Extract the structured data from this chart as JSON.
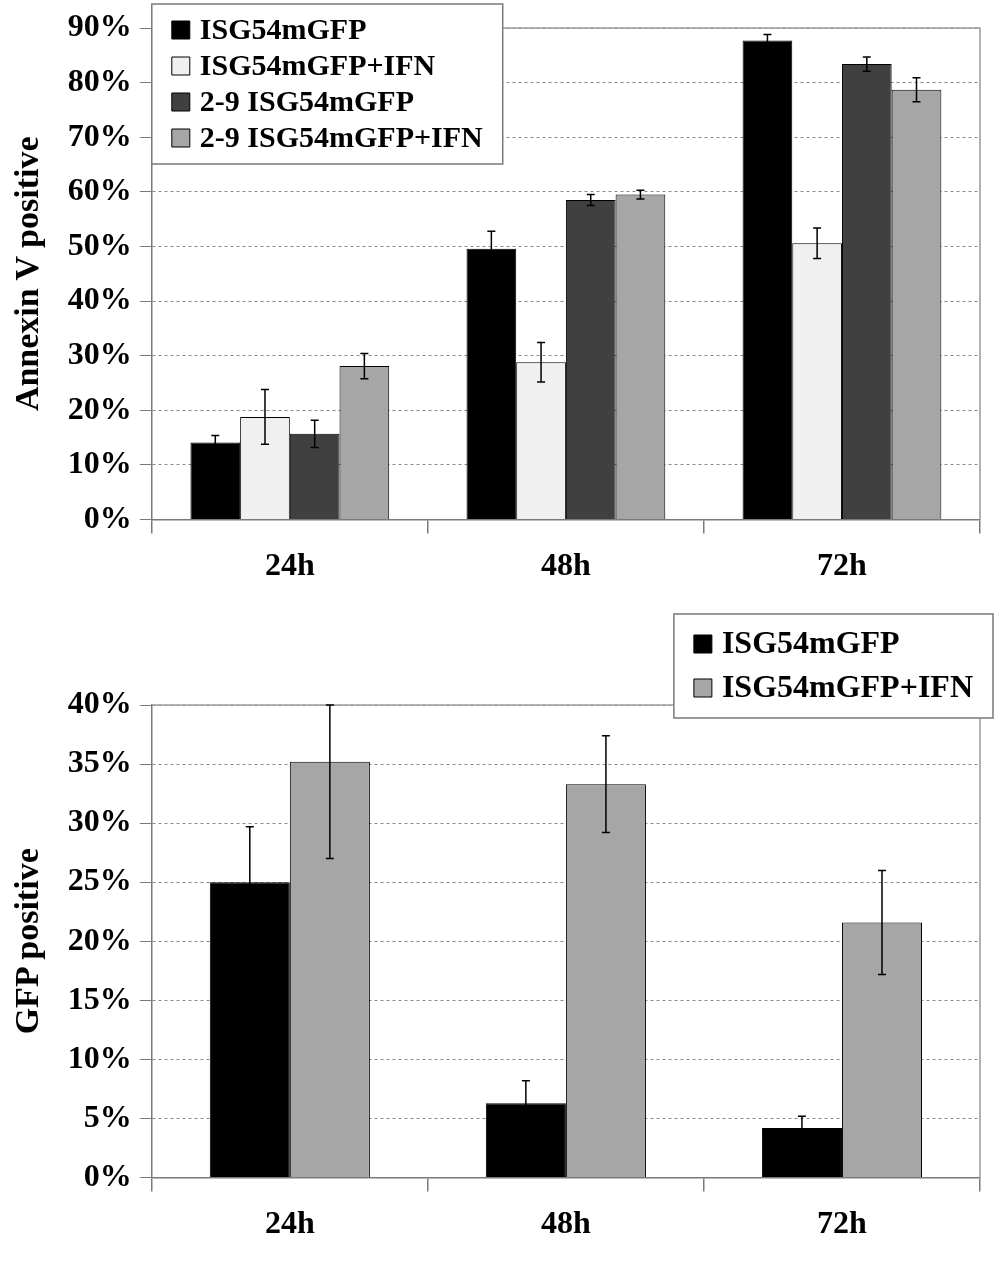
{
  "chart_data": [
    {
      "type": "bar",
      "ylabel": "Annexin V positive",
      "categories": [
        "24h",
        "48h",
        "72h"
      ],
      "series": [
        {
          "name": "ISG54mGFP",
          "color": "#000000",
          "values": [
            14.1,
            49.6,
            87.7
          ],
          "errors": [
            1.3,
            3.2,
            1.1
          ]
        },
        {
          "name": "ISG54mGFP+IFN",
          "color": "#f0f0f0",
          "values": [
            18.8,
            28.8,
            50.6
          ],
          "errors": [
            5,
            3.6,
            2.8
          ]
        },
        {
          "name": "2-9 ISG54mGFP",
          "color": "#404040",
          "values": [
            15.7,
            58.5,
            83.4
          ],
          "errors": [
            2.5,
            1,
            1.3
          ]
        },
        {
          "name": "2-9 ISG54mGFP+IFN",
          "color": "#a6a6a6",
          "values": [
            28.1,
            59.5,
            78.7
          ],
          "errors": [
            2.3,
            0.8,
            2.2
          ]
        }
      ],
      "ylim": [
        0,
        90
      ],
      "yticks": [
        {
          "value": 0,
          "label": "0%"
        },
        {
          "value": 10,
          "label": "10%"
        },
        {
          "value": 20,
          "label": "20%"
        },
        {
          "value": 30,
          "label": "30%"
        },
        {
          "value": 40,
          "label": "40%"
        },
        {
          "value": 50,
          "label": "50%"
        },
        {
          "value": 60,
          "label": "60%"
        },
        {
          "value": 70,
          "label": "70%"
        },
        {
          "value": 80,
          "label": "80%"
        },
        {
          "value": 90,
          "label": "90%"
        }
      ],
      "grid": "y",
      "legend": "top left"
    },
    {
      "type": "bar",
      "ylabel": "GFP positive",
      "categories": [
        "24h",
        "48h",
        "72h"
      ],
      "series": [
        {
          "name": "ISG54mGFP",
          "color": "#000000",
          "values": [
            25,
            6.3,
            4.2
          ],
          "errors": [
            4.7,
            1.9,
            1.0
          ]
        },
        {
          "name": "ISG54mGFP+IFN",
          "color": "#a6a6a6",
          "values": [
            35.2,
            33.3,
            21.6
          ],
          "errors": [
            [
              27,
              40
            ],
            4.1,
            4.4
          ]
        }
      ],
      "ylim": [
        0,
        40
      ],
      "yticks": [
        {
          "value": 0,
          "label": "0%"
        },
        {
          "value": 5,
          "label": "5%"
        },
        {
          "value": 10,
          "label": "10%"
        },
        {
          "value": 15,
          "label": "15%"
        },
        {
          "value": 20,
          "label": "20%"
        },
        {
          "value": 25,
          "label": "25%"
        },
        {
          "value": 30,
          "label": "30%"
        },
        {
          "value": 35,
          "label": "35%"
        },
        {
          "value": 40,
          "label": "40%"
        }
      ],
      "grid": "y",
      "legend": "top right"
    }
  ]
}
